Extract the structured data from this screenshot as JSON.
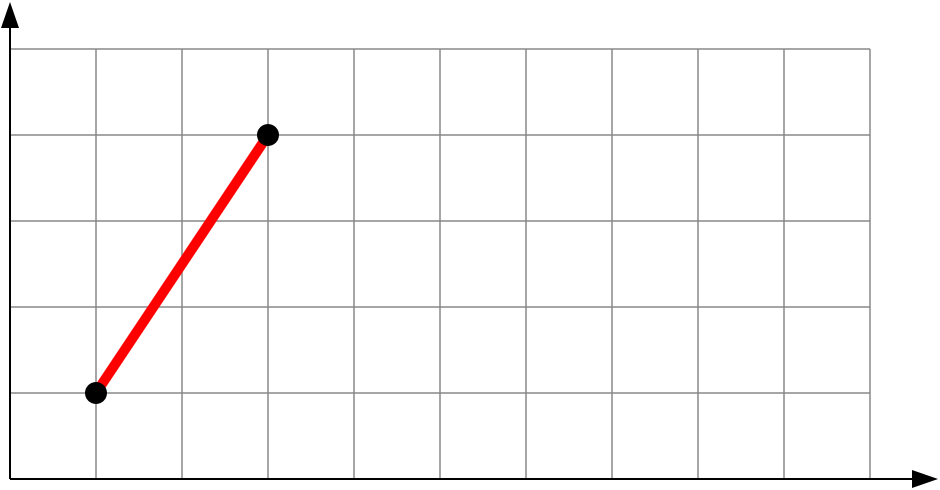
{
  "chart_data": {
    "type": "line",
    "title": "",
    "xlabel": "",
    "ylabel": "",
    "xlim": [
      0,
      10
    ],
    "ylim": [
      0,
      5
    ],
    "grid": true,
    "grid_step": 1,
    "tick_labels": false,
    "series": [
      {
        "x": [
          1,
          3
        ],
        "y": [
          1,
          4
        ]
      }
    ],
    "colors": {
      "line": "#ff0000",
      "point": "#000000",
      "grid": "#888888",
      "axis": "#000000",
      "background": "#ffffff"
    }
  }
}
